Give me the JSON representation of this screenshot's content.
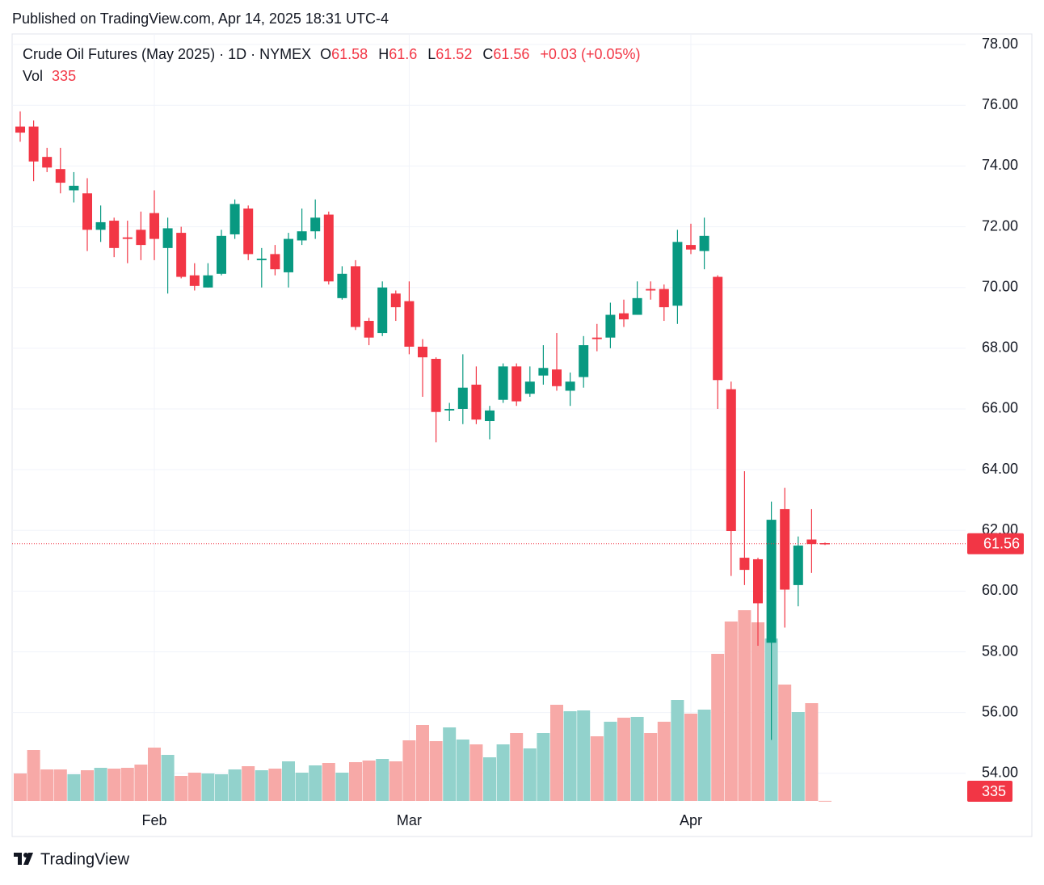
{
  "published": "Published on TradingView.com, Apr 14, 2025 18:31 UTC-4",
  "brand": "TradingView",
  "chart_data": {
    "type": "candlestick",
    "title": "Crude Oil Futures (May 2025) · 1D · NYMEX",
    "ohlc_labels": [
      "O",
      "H",
      "L",
      "C"
    ],
    "change": "+0.03 (+0.05%)",
    "volume_label": "Vol",
    "up_color": "#089981",
    "down_color": "#f23645",
    "up_volume_color": "#92d2cc",
    "down_volume_color": "#f7a9a7",
    "categories": [
      null,
      null,
      null,
      null,
      null,
      null,
      null,
      null,
      null,
      null,
      "Feb",
      null,
      null,
      null,
      null,
      null,
      null,
      null,
      null,
      null,
      null,
      null,
      null,
      null,
      null,
      null,
      null,
      null,
      null,
      "Mar",
      null,
      null,
      null,
      null,
      null,
      null,
      null,
      null,
      null,
      null,
      null,
      null,
      null,
      null,
      null,
      null,
      null,
      null,
      null,
      null,
      "Apr",
      null,
      null,
      null,
      null,
      null,
      null,
      null,
      null,
      null,
      null
    ],
    "open": [
      75.3,
      75.3,
      74.3,
      73.9,
      73.2,
      73.1,
      71.9,
      72.2,
      71.65,
      71.9,
      72.45,
      71.3,
      71.8,
      70.4,
      70.0,
      70.45,
      71.75,
      72.6,
      70.9,
      71.1,
      70.5,
      71.55,
      71.85,
      72.4,
      69.65,
      70.7,
      68.9,
      68.5,
      69.8,
      69.55,
      68.05,
      67.65,
      65.95,
      66.0,
      66.8,
      65.6,
      66.3,
      67.4,
      66.5,
      67.1,
      67.3,
      66.6,
      67.05,
      68.35,
      68.35,
      69.15,
      69.1,
      69.95,
      69.95,
      69.4,
      71.4,
      71.2,
      70.35,
      66.65,
      61.1,
      61.05,
      58.3,
      62.7,
      60.2,
      61.7,
      61.58
    ],
    "high": [
      75.8,
      75.5,
      74.6,
      74.6,
      73.8,
      73.6,
      72.7,
      72.3,
      72.2,
      72.5,
      73.2,
      72.3,
      72.0,
      70.8,
      70.8,
      71.9,
      72.9,
      72.7,
      71.3,
      71.4,
      71.8,
      72.6,
      72.9,
      72.5,
      70.7,
      70.9,
      69.0,
      70.2,
      69.9,
      70.2,
      68.3,
      67.7,
      66.2,
      67.8,
      67.4,
      66.1,
      67.5,
      67.5,
      67.4,
      68.1,
      68.5,
      67.2,
      68.4,
      68.8,
      69.5,
      69.6,
      70.2,
      70.2,
      70.1,
      71.9,
      72.1,
      72.3,
      70.4,
      66.9,
      63.95,
      61.1,
      62.95,
      63.4,
      61.8,
      62.7,
      61.6
    ],
    "low": [
      74.8,
      73.5,
      73.8,
      73.1,
      72.8,
      71.2,
      71.5,
      71.0,
      70.8,
      70.9,
      70.9,
      69.8,
      70.3,
      69.9,
      70.0,
      70.4,
      71.6,
      70.9,
      70.0,
      70.4,
      70.0,
      71.4,
      71.6,
      70.1,
      69.6,
      68.6,
      68.1,
      68.4,
      68.9,
      67.8,
      66.4,
      64.9,
      65.6,
      65.5,
      65.5,
      65.0,
      66.2,
      66.1,
      66.4,
      66.8,
      66.6,
      66.1,
      66.7,
      67.9,
      68.0,
      68.7,
      69.1,
      69.6,
      68.9,
      68.8,
      71.1,
      70.6,
      66.0,
      60.5,
      60.2,
      58.2,
      55.1,
      58.8,
      59.5,
      60.6,
      61.52
    ],
    "close": [
      75.1,
      74.15,
      73.95,
      73.45,
      73.35,
      71.9,
      72.15,
      71.3,
      71.6,
      71.4,
      71.6,
      71.95,
      70.35,
      70.05,
      70.4,
      71.7,
      72.75,
      71.1,
      70.95,
      70.6,
      71.6,
      71.85,
      72.3,
      70.2,
      70.45,
      68.7,
      68.35,
      70.0,
      69.35,
      68.05,
      67.7,
      65.9,
      66.0,
      66.7,
      65.65,
      65.95,
      67.4,
      66.25,
      66.9,
      67.35,
      66.75,
      66.9,
      68.1,
      68.3,
      69.1,
      68.95,
      69.65,
      69.9,
      69.35,
      71.5,
      71.25,
      71.7,
      66.95,
      61.98,
      60.7,
      59.6,
      62.35,
      60.05,
      61.5,
      61.55,
      61.56
    ],
    "volume": [
      88400,
      163800,
      101400,
      101400,
      85800,
      98800,
      106600,
      104000,
      106600,
      117000,
      171600,
      148200,
      80600,
      91000,
      88400,
      85800,
      101400,
      111800,
      98800,
      104000,
      127400,
      91000,
      114400,
      122200,
      91000,
      124800,
      130000,
      135200,
      127400,
      195000,
      244400,
      192400,
      236600,
      197600,
      182000,
      140400,
      182000,
      218400,
      169000,
      218400,
      309400,
      288600,
      291200,
      208000,
      254800,
      267800,
      270400,
      218400,
      254800,
      325000,
      280800,
      293800,
      473200,
      577200,
      613600,
      574600,
      522600,
      374400,
      286000,
      314600,
      335
    ],
    "ylim": [
      53.09,
      78.35
    ],
    "yticks": [
      {
        "value": 54,
        "label": "54.00"
      },
      {
        "value": 56,
        "label": "56.00"
      },
      {
        "value": 58,
        "label": "58.00"
      },
      {
        "value": 60,
        "label": "60.00"
      },
      {
        "value": 62,
        "label": "62.00"
      },
      {
        "value": 64,
        "label": "64.00"
      },
      {
        "value": 66,
        "label": "66.00"
      },
      {
        "value": 68,
        "label": "68.00"
      },
      {
        "value": 70,
        "label": "70.00"
      },
      {
        "value": 72,
        "label": "72.00"
      },
      {
        "value": 74,
        "label": "74.00"
      },
      {
        "value": 76,
        "label": "76.00"
      },
      {
        "value": 78,
        "label": "78.00"
      }
    ],
    "grid": true
  }
}
